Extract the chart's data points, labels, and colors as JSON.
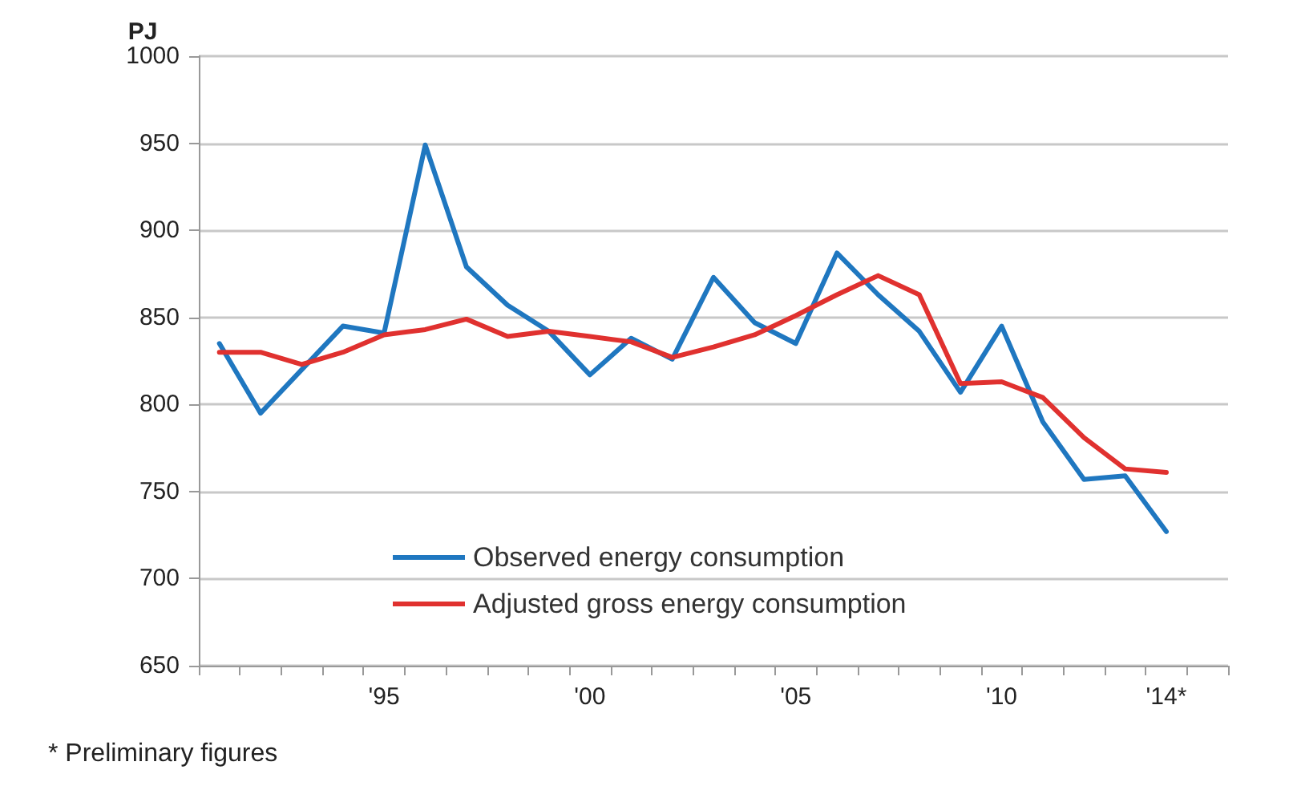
{
  "chart_data": {
    "type": "line",
    "ylabel": "PJ",
    "categories": [
      null,
      null,
      null,
      null,
      "'95",
      null,
      null,
      null,
      null,
      "'00",
      null,
      null,
      null,
      null,
      "'05",
      null,
      null,
      null,
      null,
      "'10",
      null,
      null,
      null,
      "'14*",
      null
    ],
    "series": [
      {
        "name": "Observed energy consumption",
        "color": "#1f77c0",
        "values": [
          835,
          795,
          820,
          845,
          841,
          949,
          879,
          857,
          842,
          817,
          838,
          826,
          873,
          847,
          835,
          887,
          863,
          842,
          807,
          845,
          790,
          757,
          759,
          727,
          null
        ]
      },
      {
        "name": "Adjusted gross energy consumption",
        "color": "#e0312f",
        "values": [
          830,
          830,
          823,
          830,
          840,
          843,
          849,
          839,
          842,
          839,
          836,
          827,
          833,
          840,
          851,
          863,
          874,
          863,
          812,
          813,
          804,
          781,
          763,
          761,
          null
        ]
      }
    ],
    "ylim": [
      650,
      1000
    ],
    "yticks": [
      650,
      700,
      750,
      800,
      850,
      900,
      950,
      1000
    ],
    "grid": "y",
    "legend": "bottom",
    "marker": "none",
    "line_style": "solid",
    "annotations": [
      "* Preliminary figures"
    ]
  }
}
